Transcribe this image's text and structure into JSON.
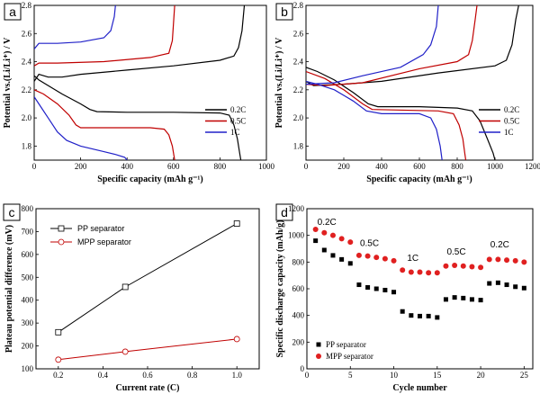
{
  "chart_data": [
    {
      "id": "a",
      "type": "line",
      "panel_label": "a",
      "xlabel": "Specific capacity (mAh g⁻¹)",
      "ylabel": "Potential vs.(Li/Li⁺) / V",
      "xlim": [
        0,
        1000
      ],
      "ylim": [
        1.7,
        2.8
      ],
      "xticks": [
        0,
        200,
        400,
        600,
        800,
        1000
      ],
      "yticks": [
        1.8,
        2.0,
        2.2,
        2.4,
        2.6,
        2.8
      ],
      "ytick_labels": [
        "1.8",
        "2.0",
        "2.2",
        "2.4",
        "2.6",
        "2.8"
      ],
      "legend_position": "right",
      "series": [
        {
          "name": "0.2C",
          "color": "#000000",
          "discharge": [
            [
              0,
              2.3
            ],
            [
              20,
              2.27
            ],
            [
              60,
              2.23
            ],
            [
              120,
              2.17
            ],
            [
              200,
              2.1
            ],
            [
              240,
              2.06
            ],
            [
              270,
              2.045
            ],
            [
              400,
              2.04
            ],
            [
              600,
              2.04
            ],
            [
              800,
              2.035
            ],
            [
              840,
              2.02
            ],
            [
              860,
              1.95
            ],
            [
              875,
              1.85
            ],
            [
              885,
              1.75
            ],
            [
              890,
              1.7
            ]
          ],
          "charge": [
            [
              0,
              2.26
            ],
            [
              20,
              2.31
            ],
            [
              60,
              2.29
            ],
            [
              120,
              2.29
            ],
            [
              200,
              2.31
            ],
            [
              400,
              2.34
            ],
            [
              600,
              2.37
            ],
            [
              800,
              2.41
            ],
            [
              860,
              2.44
            ],
            [
              880,
              2.5
            ],
            [
              895,
              2.62
            ],
            [
              905,
              2.8
            ]
          ]
        },
        {
          "name": "0.5C",
          "color": "#c00000",
          "discharge": [
            [
              0,
              2.2
            ],
            [
              40,
              2.17
            ],
            [
              100,
              2.1
            ],
            [
              150,
              2.02
            ],
            [
              180,
              1.95
            ],
            [
              200,
              1.93
            ],
            [
              300,
              1.93
            ],
            [
              500,
              1.93
            ],
            [
              560,
              1.92
            ],
            [
              580,
              1.88
            ],
            [
              595,
              1.8
            ],
            [
              605,
              1.7
            ]
          ],
          "charge": [
            [
              0,
              2.37
            ],
            [
              20,
              2.39
            ],
            [
              100,
              2.39
            ],
            [
              300,
              2.4
            ],
            [
              500,
              2.43
            ],
            [
              580,
              2.46
            ],
            [
              595,
              2.55
            ],
            [
              605,
              2.8
            ]
          ]
        },
        {
          "name": "1C",
          "color": "#2020c8",
          "discharge": [
            [
              0,
              2.15
            ],
            [
              20,
              2.1
            ],
            [
              60,
              2.0
            ],
            [
              100,
              1.9
            ],
            [
              140,
              1.84
            ],
            [
              200,
              1.8
            ],
            [
              300,
              1.76
            ],
            [
              350,
              1.74
            ],
            [
              390,
              1.72
            ],
            [
              400,
              1.7
            ]
          ],
          "charge": [
            [
              0,
              2.49
            ],
            [
              20,
              2.53
            ],
            [
              100,
              2.53
            ],
            [
              200,
              2.54
            ],
            [
              300,
              2.57
            ],
            [
              330,
              2.62
            ],
            [
              345,
              2.72
            ],
            [
              350,
              2.8
            ]
          ]
        }
      ]
    },
    {
      "id": "b",
      "type": "line",
      "panel_label": "b",
      "xlabel": "Specific capacity (mAh g⁻¹)",
      "ylabel": "Potential vs.(Li/Li⁺) / V",
      "xlim": [
        0,
        1200
      ],
      "ylim": [
        1.7,
        2.8
      ],
      "xticks": [
        0,
        200,
        400,
        600,
        800,
        1000,
        1200
      ],
      "yticks": [
        1.8,
        2.0,
        2.2,
        2.4,
        2.6,
        2.8
      ],
      "ytick_labels": [
        "1.8",
        "2.0",
        "2.2",
        "2.4",
        "2.6",
        "2.8"
      ],
      "legend_position": "right",
      "series": [
        {
          "name": "0.2C",
          "color": "#000000",
          "discharge": [
            [
              0,
              2.36
            ],
            [
              60,
              2.33
            ],
            [
              150,
              2.27
            ],
            [
              250,
              2.18
            ],
            [
              330,
              2.1
            ],
            [
              380,
              2.08
            ],
            [
              600,
              2.08
            ],
            [
              800,
              2.07
            ],
            [
              880,
              2.05
            ],
            [
              920,
              1.98
            ],
            [
              960,
              1.85
            ],
            [
              990,
              1.75
            ],
            [
              1000,
              1.7
            ]
          ],
          "charge": [
            [
              0,
              2.26
            ],
            [
              40,
              2.23
            ],
            [
              200,
              2.24
            ],
            [
              400,
              2.26
            ],
            [
              700,
              2.32
            ],
            [
              1000,
              2.37
            ],
            [
              1060,
              2.41
            ],
            [
              1090,
              2.52
            ],
            [
              1110,
              2.7
            ],
            [
              1125,
              2.8
            ]
          ]
        },
        {
          "name": "0.5C",
          "color": "#c00000",
          "discharge": [
            [
              0,
              2.33
            ],
            [
              100,
              2.28
            ],
            [
              200,
              2.2
            ],
            [
              300,
              2.1
            ],
            [
              350,
              2.06
            ],
            [
              700,
              2.05
            ],
            [
              780,
              2.03
            ],
            [
              810,
              1.95
            ],
            [
              830,
              1.85
            ],
            [
              840,
              1.75
            ],
            [
              845,
              1.7
            ]
          ],
          "charge": [
            [
              0,
              2.24
            ],
            [
              100,
              2.23
            ],
            [
              300,
              2.25
            ],
            [
              600,
              2.35
            ],
            [
              800,
              2.4
            ],
            [
              860,
              2.45
            ],
            [
              880,
              2.55
            ],
            [
              895,
              2.7
            ],
            [
              905,
              2.8
            ]
          ]
        },
        {
          "name": "1C",
          "color": "#2020c8",
          "discharge": [
            [
              0,
              2.26
            ],
            [
              60,
              2.24
            ],
            [
              150,
              2.2
            ],
            [
              250,
              2.12
            ],
            [
              320,
              2.05
            ],
            [
              400,
              2.03
            ],
            [
              600,
              2.03
            ],
            [
              660,
              2.0
            ],
            [
              690,
              1.92
            ],
            [
              710,
              1.8
            ],
            [
              720,
              1.7
            ]
          ],
          "charge": [
            [
              0,
              2.24
            ],
            [
              150,
              2.25
            ],
            [
              300,
              2.3
            ],
            [
              500,
              2.36
            ],
            [
              620,
              2.45
            ],
            [
              660,
              2.52
            ],
            [
              690,
              2.65
            ],
            [
              700,
              2.8
            ]
          ]
        }
      ]
    },
    {
      "id": "c",
      "type": "line",
      "panel_label": "c",
      "xlabel": "Current rate (C)",
      "ylabel": "Plateau potential difference (mV)",
      "xlim": [
        0.1,
        1.1
      ],
      "ylim": [
        100,
        800
      ],
      "xticks": [
        0.2,
        0.4,
        0.6,
        0.8,
        1.0
      ],
      "yticks": [
        100,
        200,
        300,
        400,
        500,
        600,
        700,
        800
      ],
      "legend_position": "top-left",
      "series": [
        {
          "name": "PP separator",
          "color": "#000000",
          "marker": "square",
          "x": [
            0.2,
            0.5,
            1.0
          ],
          "y": [
            260,
            458,
            735
          ]
        },
        {
          "name": "MPP separator",
          "color": "#c00000",
          "marker": "circle",
          "x": [
            0.2,
            0.5,
            1.0
          ],
          "y": [
            140,
            175,
            230
          ]
        }
      ]
    },
    {
      "id": "d",
      "type": "scatter",
      "panel_label": "d",
      "xlabel": "Cycle number",
      "ylabel": "Specific discharge capacity (mAh/g)",
      "xlim": [
        0,
        26
      ],
      "ylim": [
        0,
        1200
      ],
      "xticks": [
        0,
        5,
        10,
        15,
        20,
        25
      ],
      "yticks": [
        0,
        200,
        400,
        600,
        800,
        1000,
        1200
      ],
      "legend_position": "bottom-left",
      "annotations": [
        {
          "text": "0.2C",
          "x": 2.3,
          "y": 1080
        },
        {
          "text": "0.5C",
          "x": 7.2,
          "y": 920
        },
        {
          "text": "1C",
          "x": 12.2,
          "y": 810
        },
        {
          "text": "0.5C",
          "x": 17.2,
          "y": 855
        },
        {
          "text": "0.2C",
          "x": 22.2,
          "y": 910
        }
      ],
      "series": [
        {
          "name": "PP separator",
          "color": "#000000",
          "marker": "square",
          "x": [
            1,
            2,
            3,
            4,
            5,
            6,
            7,
            8,
            9,
            10,
            11,
            12,
            13,
            14,
            15,
            16,
            17,
            18,
            19,
            20,
            21,
            22,
            23,
            24,
            25
          ],
          "y": [
            960,
            890,
            850,
            820,
            790,
            630,
            610,
            600,
            590,
            575,
            430,
            400,
            395,
            395,
            385,
            520,
            535,
            530,
            520,
            515,
            640,
            645,
            630,
            615,
            605
          ]
        },
        {
          "name": "MPP separator",
          "color": "#e02020",
          "marker": "circle",
          "x": [
            1,
            2,
            3,
            4,
            5,
            6,
            7,
            8,
            9,
            10,
            11,
            12,
            13,
            14,
            15,
            16,
            17,
            18,
            19,
            20,
            21,
            22,
            23,
            24,
            25
          ],
          "y": [
            1045,
            1020,
            1000,
            975,
            950,
            850,
            845,
            835,
            825,
            810,
            740,
            725,
            725,
            720,
            720,
            770,
            775,
            770,
            765,
            760,
            820,
            820,
            815,
            810,
            800
          ]
        }
      ]
    }
  ]
}
